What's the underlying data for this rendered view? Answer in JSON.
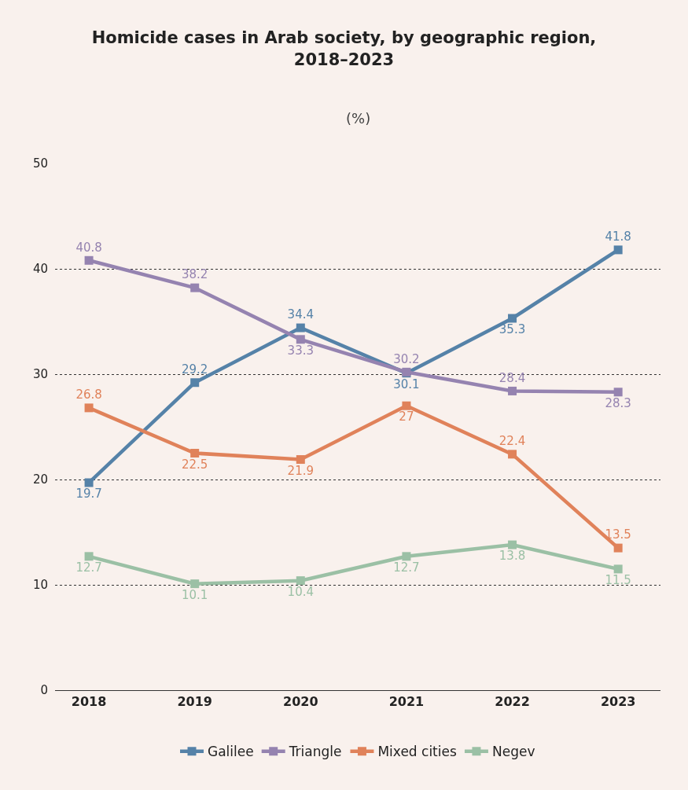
{
  "chart_data": {
    "type": "line",
    "title": "Homicide cases in Arab society, by geographic region, 2018–2023",
    "subtitle": "(%)",
    "categories": [
      "2018",
      "2019",
      "2020",
      "2021",
      "2022",
      "2023"
    ],
    "series": [
      {
        "name": "Galilee",
        "color": "#5582a8",
        "values": [
          19.7,
          29.2,
          34.4,
          30.1,
          35.3,
          41.8
        ]
      },
      {
        "name": "Triangle",
        "color": "#9583b0",
        "values": [
          40.8,
          38.2,
          33.3,
          30.2,
          28.4,
          28.3
        ]
      },
      {
        "name": "Mixed cities",
        "color": "#e0825a",
        "values": [
          26.8,
          22.5,
          21.9,
          27,
          22.4,
          13.5
        ]
      },
      {
        "name": "Negev",
        "color": "#9bc0a5",
        "values": [
          12.7,
          10.1,
          10.4,
          12.7,
          13.8,
          11.5
        ]
      }
    ],
    "ylim": [
      0,
      50
    ],
    "yticks": [
      0,
      10,
      20,
      30,
      40,
      50
    ],
    "grid": "y",
    "legend": "bottom",
    "marker": "square",
    "line_style": "solid",
    "data_labels": true
  }
}
